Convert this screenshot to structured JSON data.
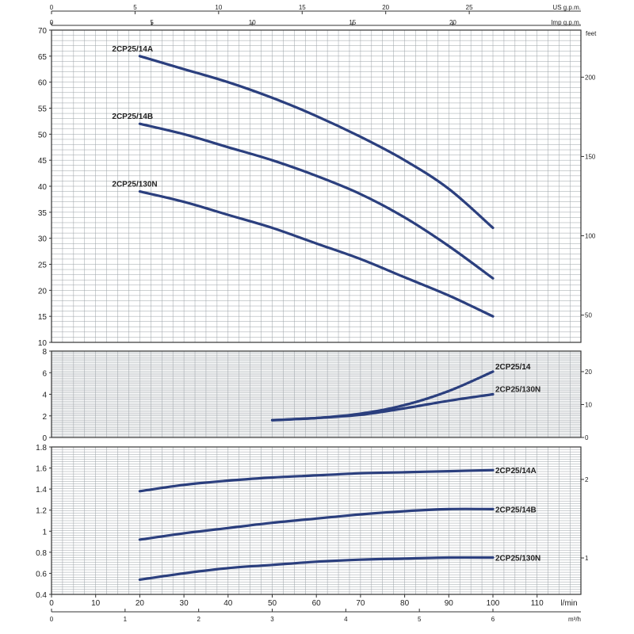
{
  "chart_data": [
    {
      "type": "line",
      "panel": "head",
      "ylabel": "",
      "right_axis_label": "feet",
      "x_units": "l/min",
      "ylim": [
        10,
        70
      ],
      "yticks": [
        "10",
        "15",
        "20",
        "25",
        "30",
        "35",
        "40",
        "45",
        "50",
        "55",
        "60",
        "65",
        "70"
      ],
      "right_ticks": [
        {
          "value": 50,
          "label": "50"
        },
        {
          "value": 100,
          "label": "100"
        },
        {
          "value": 150,
          "label": "150"
        },
        {
          "value": 200,
          "label": "200"
        }
      ],
      "series": [
        {
          "name": "2CP25/14A",
          "x": [
            20,
            30,
            40,
            50,
            60,
            70,
            80,
            90,
            100
          ],
          "y": [
            65,
            62.5,
            60,
            57,
            53.5,
            49.5,
            45,
            39.5,
            32
          ]
        },
        {
          "name": "2CP25/14B",
          "x": [
            20,
            30,
            40,
            50,
            60,
            70,
            80,
            90,
            100
          ],
          "y": [
            52,
            50,
            47.5,
            45,
            42,
            38.5,
            34,
            28.5,
            22.3
          ]
        },
        {
          "name": "2CP25/130N",
          "x": [
            20,
            30,
            40,
            50,
            60,
            70,
            80,
            90,
            100
          ],
          "y": [
            39,
            37,
            34.5,
            32,
            29,
            26,
            22.5,
            19,
            15
          ]
        }
      ]
    },
    {
      "type": "line",
      "panel": "npsh",
      "ylim": [
        0,
        8
      ],
      "yticks": [
        "0",
        "2",
        "4",
        "6",
        "8"
      ],
      "right_ticks": [
        {
          "value": 0,
          "label": "0"
        },
        {
          "value": 10,
          "label": "10"
        },
        {
          "value": 20,
          "label": "20"
        }
      ],
      "series": [
        {
          "name": "2CP25/14",
          "x": [
            50,
            60,
            70,
            80,
            90,
            100
          ],
          "y": [
            1.6,
            1.8,
            2.2,
            3.0,
            4.3,
            6.1
          ]
        },
        {
          "name": "2CP25/130N",
          "x": [
            50,
            60,
            70,
            80,
            90,
            100
          ],
          "y": [
            1.6,
            1.8,
            2.1,
            2.7,
            3.4,
            4.0
          ]
        }
      ]
    },
    {
      "type": "line",
      "panel": "power",
      "ylim": [
        0.4,
        1.8
      ],
      "yticks": [
        "0.4",
        "0.6",
        "0.8",
        "1",
        "1.2",
        "1.4",
        "1.6",
        "1.8"
      ],
      "right_ticks": [
        {
          "value": 1,
          "label": "1"
        },
        {
          "value": 2,
          "label": "2"
        }
      ],
      "series": [
        {
          "name": "2CP25/14A",
          "x": [
            20,
            30,
            40,
            50,
            60,
            70,
            80,
            90,
            100
          ],
          "y": [
            1.38,
            1.44,
            1.48,
            1.51,
            1.53,
            1.55,
            1.56,
            1.57,
            1.58
          ]
        },
        {
          "name": "2CP25/14B",
          "x": [
            20,
            30,
            40,
            50,
            60,
            70,
            80,
            90,
            100
          ],
          "y": [
            0.92,
            0.98,
            1.03,
            1.08,
            1.12,
            1.16,
            1.19,
            1.21,
            1.21
          ]
        },
        {
          "name": "2CP25/130N",
          "x": [
            20,
            30,
            40,
            50,
            60,
            70,
            80,
            90,
            100
          ],
          "y": [
            0.54,
            0.6,
            0.65,
            0.68,
            0.71,
            0.73,
            0.74,
            0.75,
            0.75
          ]
        }
      ]
    }
  ],
  "axes": {
    "flow_lmin": {
      "label": "l/min",
      "ticks": [
        "0",
        "10",
        "20",
        "30",
        "40",
        "50",
        "60",
        "70",
        "80",
        "90",
        "100",
        "110"
      ]
    },
    "flow_m3h": {
      "label": "m³/h",
      "ticks": [
        "0",
        "1",
        "2",
        "3",
        "4",
        "5",
        "6"
      ]
    },
    "us_gpm": {
      "label": "US g.p.m.",
      "ticks": [
        "0",
        "5",
        "10",
        "15",
        "20",
        "25"
      ]
    },
    "imp_gpm": {
      "label": "Imp g.p.m.",
      "ticks": [
        "0",
        "5",
        "10",
        "15",
        "20"
      ]
    }
  }
}
